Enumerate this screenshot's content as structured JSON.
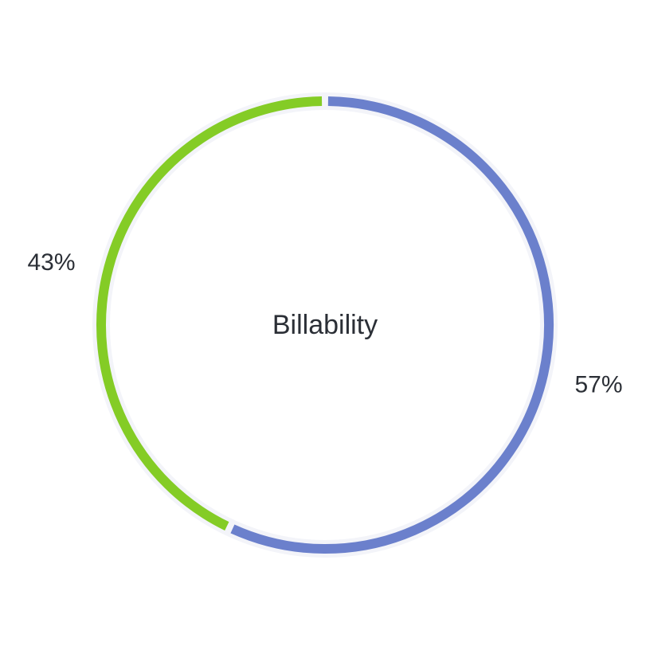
{
  "chart_data": {
    "type": "pie",
    "variant": "donut",
    "title": "",
    "center_label": "Billability",
    "slices": [
      {
        "label": "57%",
        "value": 57,
        "color": "#6b80cc"
      },
      {
        "label": "43%",
        "value": 43,
        "color": "#84cc26"
      }
    ],
    "start_angle_deg": 0,
    "direction": "clockwise",
    "track_color": "#f3f4f9",
    "legend": "none"
  }
}
